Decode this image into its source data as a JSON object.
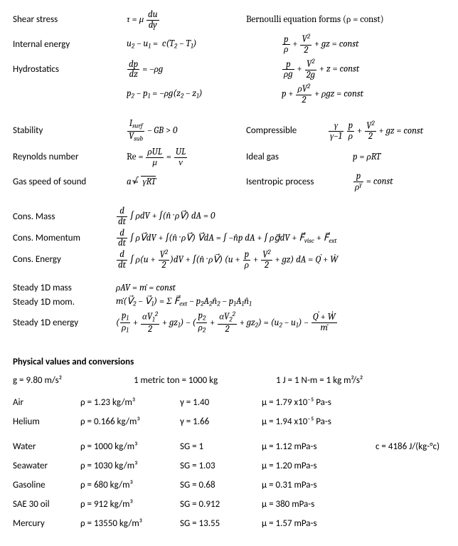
{
  "labels": {
    "shear": "Shear stress",
    "internal": "Internal energy",
    "hydro": "Hydrostatics",
    "bernHdr": "Bernoulli equation forms (ρ = const)",
    "stability": "Stability",
    "reynolds": "Reynolds number",
    "gasSpeed": "Gas speed of sound",
    "compressible": "Compressible",
    "idealGas": "Ideal gas",
    "isentropic": "Isentropic process",
    "consMass": "Cons. Mass",
    "consMom": "Cons. Momentum",
    "consEnergy": "Cons. Energy",
    "s1dMass": "Steady 1D mass",
    "s1dMom": "Steady 1D mom.",
    "s1dEnergy": "Steady 1D energy",
    "physHdr": "Physical values and conversions"
  },
  "conversions": {
    "g": "g = 9.80 m/s²",
    "ton": "1 metric ton = 1000 kg",
    "joule": "1 J = 1 N-m = 1 kg m²/s²"
  },
  "materials": {
    "set1": [
      {
        "name": "Air",
        "rho": "ρ = 1.23 kg/m³",
        "sg": "γ = 1.40",
        "mu": "μ = 1.79 x10⁻⁵ Pa-s",
        "c": ""
      },
      {
        "name": "Helium",
        "rho": "ρ = 0.166 kg/m³",
        "sg": "γ = 1.66",
        "mu": "μ = 1.94 x10⁻⁵ Pa-s",
        "c": ""
      }
    ],
    "set2": [
      {
        "name": "Water",
        "rho": "ρ = 1000 kg/m³",
        "sg": "SG = 1",
        "mu": "μ = 1.12 mPa-s",
        "c": "c = 4186 J/(kg-°c)"
      },
      {
        "name": "Seawater",
        "rho": "ρ = 1030 kg/m³",
        "sg": "SG = 1.03",
        "mu": "μ = 1.20 mPa-s",
        "c": ""
      },
      {
        "name": "Gasoline",
        "rho": "ρ = 680 kg/m³",
        "sg": "SG = 0.68",
        "mu": "μ = 0.31 mPa-s",
        "c": ""
      },
      {
        "name": "SAE 30 oil",
        "rho": "ρ = 912 kg/m³",
        "sg": "SG = 0.912",
        "mu": "μ = 380 mPa-s",
        "c": ""
      },
      {
        "name": "Mercury",
        "rho": "ρ = 13550 kg/m³",
        "sg": "SG = 13.55",
        "mu": "μ = 1.57 mPa-s",
        "c": ""
      }
    ]
  },
  "style": {
    "bg": "#ffffff",
    "fg": "#000000",
    "body_fontsize": 13,
    "eq_font": "Cambria Math"
  }
}
